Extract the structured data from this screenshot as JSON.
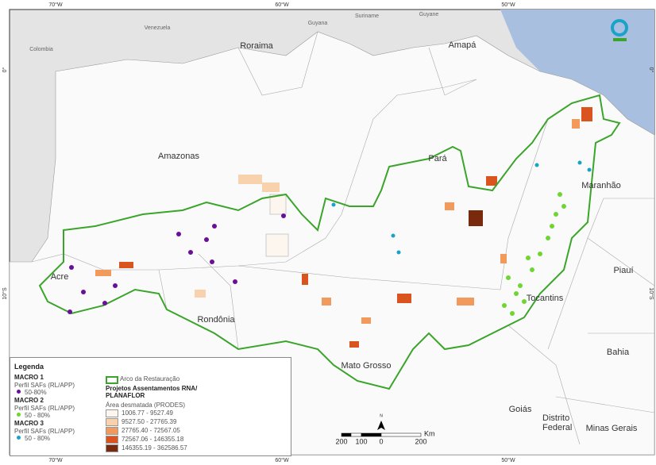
{
  "graticule": {
    "top": [
      "70°W",
      "60°W",
      "50°W"
    ],
    "bottom": [
      "70°W",
      "60°W",
      "50°W"
    ],
    "left": [
      "0°",
      "10°S"
    ],
    "right": [
      "0°",
      "10°S"
    ]
  },
  "countries": [
    "Colombia",
    "Venezuela",
    "Guyana",
    "Suriname",
    "Guyane"
  ],
  "states": [
    "Roraima",
    "Amapá",
    "Amazonas",
    "Pará",
    "Maranhão",
    "Acre",
    "Rondônia",
    "Mato Grosso",
    "Tocantins",
    "Piauí",
    "Bahia",
    "Goiás",
    "Distrito Federal",
    "Minas Gerais"
  ],
  "legend": {
    "title": "Legenda",
    "macros": [
      {
        "name": "MACRO 1",
        "profile": "Perfil SAFs (RL/APP)",
        "range": "50-80%",
        "color": "#6a0f9a"
      },
      {
        "name": "MACRO 2",
        "profile": "Perfil SAFs (RL/APP)",
        "range": "50 - 80%",
        "color": "#6fd531"
      },
      {
        "name": "MACRO 3",
        "profile": "Perfil SAFs (RL/APP)",
        "range": "50 - 80%",
        "color": "#1aa3c9"
      }
    ],
    "arc": "Arco da Restauração",
    "projects": "Projetos Assentamentos RNA/ PLANAFLOR",
    "area": "Área desmatada (PRODES)",
    "classes": [
      {
        "label": "1006.77 - 9527.49",
        "color": "#fdf6ee"
      },
      {
        "label": "9527.50 - 27765.39",
        "color": "#f8d1ad"
      },
      {
        "label": "27765.40 - 72567.05",
        "color": "#f29a5c"
      },
      {
        "label": "72567.06 - 146355.18",
        "color": "#d9541e"
      },
      {
        "label": "146355.19 - 362586.57",
        "color": "#7a2a0c"
      }
    ]
  },
  "scale": {
    "ticks": [
      "200",
      "100",
      "0",
      "200"
    ],
    "unit": "Km"
  },
  "north": "N"
}
